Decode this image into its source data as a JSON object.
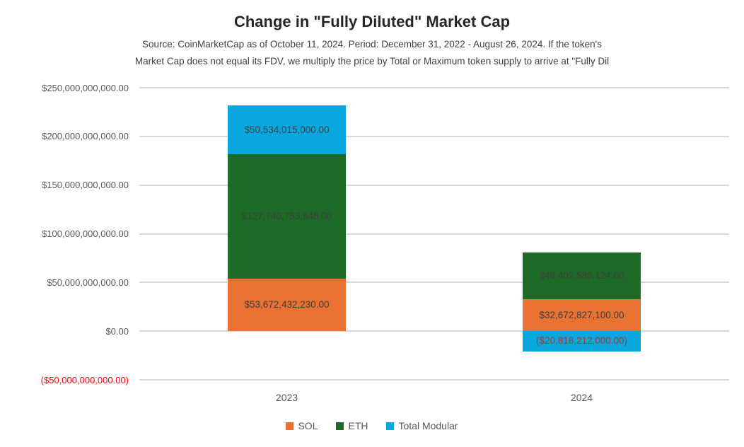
{
  "chart_data": {
    "type": "bar",
    "stacked": true,
    "title": "Change in \"Fully Diluted\" Market Cap",
    "subtitle_lines": [
      "Source: CoinMarketCap as of October 11, 2024. Period: December 31, 2022 - August 26, 2024. If the token's",
      "Market Cap does not equal its FDV, we multiply the price by Total or Maximum token supply to arrive at \"Fully Dil"
    ],
    "categories": [
      "2023",
      "2024"
    ],
    "series": [
      {
        "name": "SOL",
        "color": "#E97132",
        "values": [
          53672432230,
          32672827100
        ],
        "labels": [
          "$53,672,432,230.00",
          "$32,672,827,100.00"
        ]
      },
      {
        "name": "ETH",
        "color": "#1D6B27",
        "values": [
          127740753846,
          48402586124
        ],
        "labels": [
          "$127,740,753,846.00",
          "$48,402,586,124.00"
        ]
      },
      {
        "name": "Total Modular",
        "color": "#0AA6E0",
        "values": [
          50534015000,
          -20818212000
        ],
        "labels": [
          "$50,534,015,000.00",
          "($20,818,212,000.00)"
        ]
      }
    ],
    "y_ticks": [
      {
        "value": 250000000000,
        "label": "$250,000,000,000.00",
        "color": "#595959"
      },
      {
        "value": 200000000000,
        "label": "$200,000,000,000.00",
        "color": "#595959"
      },
      {
        "value": 150000000000,
        "label": "$150,000,000,000.00",
        "color": "#595959"
      },
      {
        "value": 100000000000,
        "label": "$100,000,000,000.00",
        "color": "#595959"
      },
      {
        "value": 50000000000,
        "label": "$50,000,000,000.00",
        "color": "#595959"
      },
      {
        "value": 0,
        "label": "$0.00",
        "color": "#595959"
      },
      {
        "value": -50000000000,
        "label": "($50,000,000,000.00)",
        "color": "#FF0000"
      }
    ],
    "ylim": [
      -50000000000,
      250000000000
    ],
    "grid": true,
    "legend_position": "bottom",
    "label_color": "#3f3f3f",
    "negative_label_color": "#A33832"
  }
}
